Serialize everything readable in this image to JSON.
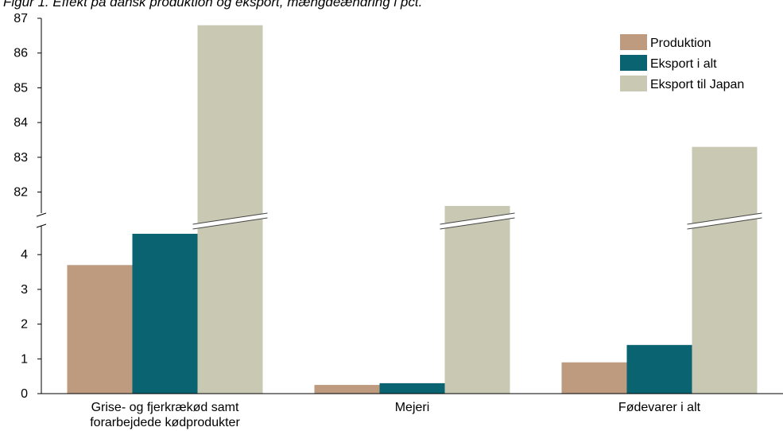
{
  "chart_data": {
    "type": "bar",
    "title": "Figur 1. Effekt på dansk produktion og eksport, mængdeændring i pct.",
    "xlabel": "",
    "ylabel": "",
    "axis_break": true,
    "ylim_lower": [
      0,
      5
    ],
    "ylim_upper": [
      81,
      87
    ],
    "y_ticks_lower": [
      "0",
      "1",
      "2",
      "3",
      "4"
    ],
    "y_ticks_upper": [
      "82",
      "83",
      "84",
      "85",
      "86",
      "87"
    ],
    "categories": [
      [
        "Grise- og fjerkrækød samt",
        "forarbejdede kødprodukter"
      ],
      [
        "Mejeri"
      ],
      [
        "Fødevarer i alt"
      ]
    ],
    "series": [
      {
        "name": "Produktion",
        "color": "#be9a7e",
        "values": [
          3.7,
          0.25,
          0.9
        ]
      },
      {
        "name": "Eksport i alt",
        "color": "#0a6370",
        "values": [
          4.6,
          0.3,
          1.4
        ]
      },
      {
        "name": "Eksport til Japan",
        "color": "#c9c8b3",
        "values": [
          86.8,
          81.6,
          83.3
        ]
      }
    ],
    "legend_position": "top-right",
    "grid": false
  }
}
